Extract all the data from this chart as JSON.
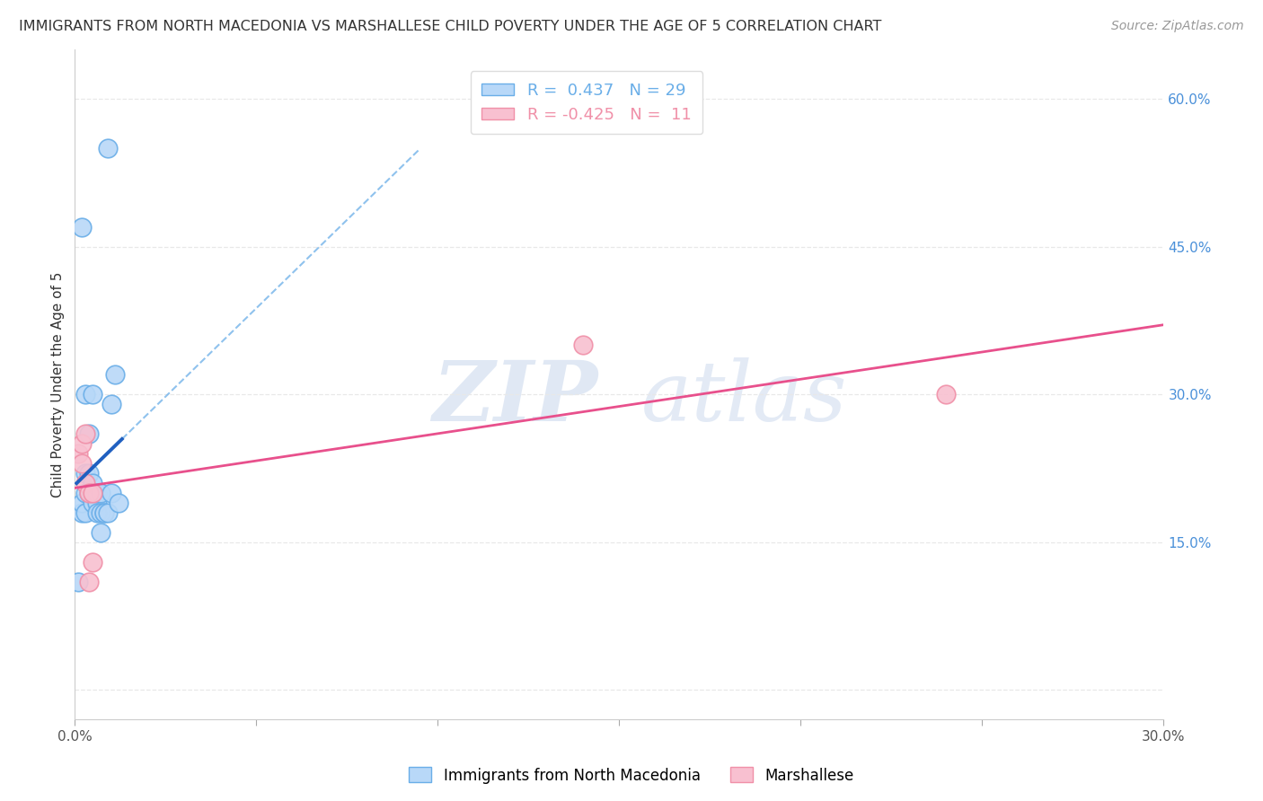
{
  "title": "IMMIGRANTS FROM NORTH MACEDONIA VS MARSHALLESE CHILD POVERTY UNDER THE AGE OF 5 CORRELATION CHART",
  "source": "Source: ZipAtlas.com",
  "ylabel": "Child Poverty Under the Age of 5",
  "xlim": [
    0,
    0.3
  ],
  "ylim": [
    -0.03,
    0.65
  ],
  "right_yticks": [
    0.0,
    0.15,
    0.3,
    0.45,
    0.6
  ],
  "right_yticklabels": [
    "",
    "15.0%",
    "30.0%",
    "45.0%",
    "60.0%"
  ],
  "xticks": [
    0.0,
    0.05,
    0.1,
    0.15,
    0.2,
    0.25,
    0.3
  ],
  "xticklabels": [
    "0.0%",
    "",
    "",
    "",
    "",
    "",
    "30.0%"
  ],
  "blue_scatter_x": [
    0.001,
    0.002,
    0.002,
    0.002,
    0.003,
    0.003,
    0.003,
    0.003,
    0.004,
    0.004,
    0.004,
    0.005,
    0.005,
    0.005,
    0.005,
    0.006,
    0.006,
    0.006,
    0.007,
    0.007,
    0.007,
    0.008,
    0.008,
    0.009,
    0.009,
    0.01,
    0.01,
    0.011,
    0.012
  ],
  "blue_scatter_y": [
    0.11,
    0.18,
    0.19,
    0.47,
    0.2,
    0.22,
    0.18,
    0.3,
    0.2,
    0.22,
    0.26,
    0.19,
    0.21,
    0.2,
    0.3,
    0.19,
    0.2,
    0.18,
    0.18,
    0.16,
    0.2,
    0.18,
    0.18,
    0.55,
    0.18,
    0.2,
    0.29,
    0.32,
    0.19
  ],
  "pink_scatter_x": [
    0.001,
    0.002,
    0.002,
    0.003,
    0.003,
    0.004,
    0.004,
    0.005,
    0.005,
    0.14,
    0.24
  ],
  "pink_scatter_y": [
    0.24,
    0.23,
    0.25,
    0.21,
    0.26,
    0.2,
    0.11,
    0.2,
    0.13,
    0.35,
    0.3
  ],
  "blue_R": 0.437,
  "blue_N": 29,
  "pink_R": -0.425,
  "pink_N": 11,
  "blue_line_color": "#6aaee8",
  "pink_line_color": "#f090a8",
  "blue_scatter_color": "#b8d8f8",
  "pink_scatter_color": "#f8c0d0",
  "blue_solid_color": "#2060c0",
  "pink_solid_color": "#e8508c",
  "watermark_zip": "ZIP",
  "watermark_atlas": "atlas",
  "background_color": "#ffffff",
  "grid_color": "#e8e8e8"
}
